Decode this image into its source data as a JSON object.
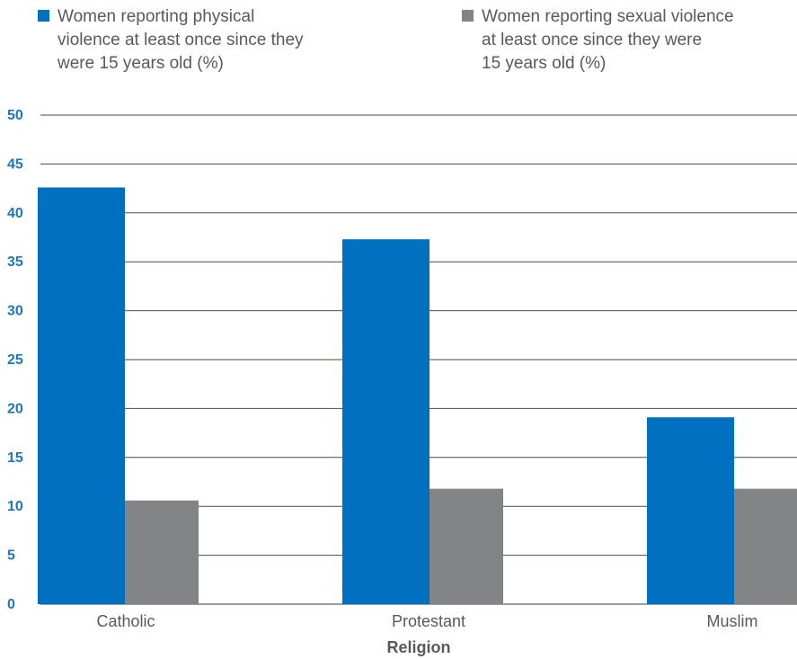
{
  "chart_data": {
    "type": "bar",
    "categories": [
      "Catholic",
      "Protestant",
      "Muslim"
    ],
    "series": [
      {
        "name": "Women reporting physical\nviolence at least once since they\nwere 15 years old (%)",
        "values": [
          42.6,
          37.3,
          19.1
        ],
        "color": "#0070bf"
      },
      {
        "name": "Women reporting sexual violence\nat least once since they were\n15 years old (%)",
        "values": [
          10.6,
          11.8,
          11.8
        ],
        "color": "#838486"
      }
    ],
    "xlabel": "Religion",
    "ylabel": "",
    "ylim": [
      0,
      50
    ],
    "yticks": [
      "0",
      "5",
      "10",
      "15",
      "20",
      "25",
      "30",
      "35",
      "40",
      "45",
      "50"
    ],
    "grid": true,
    "legend_position": "top"
  }
}
